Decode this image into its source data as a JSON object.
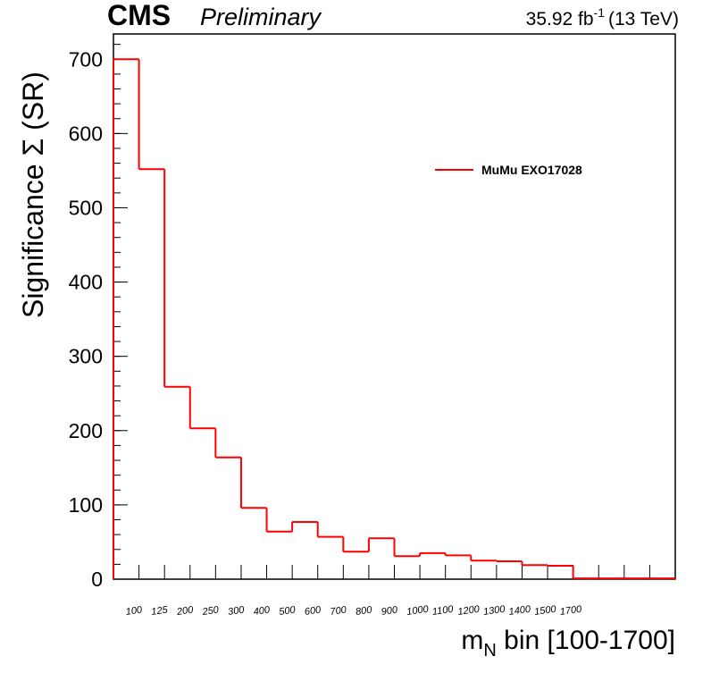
{
  "chart_data": {
    "type": "step",
    "experiment": "CMS",
    "status": "Preliminary",
    "lumi": "35.92 fb",
    "lumi_sup": "-1",
    "energy": "(13 TeV)",
    "y_label": "Significance Σ (SR)",
    "x_label_main": "m",
    "x_label_sub": "N",
    "x_label_rest": " bin [100-1700]",
    "categories": [
      "100",
      "125",
      "200",
      "250",
      "300",
      "400",
      "500",
      "600",
      "700",
      "800",
      "900",
      "1000",
      "1100",
      "1200",
      "1300",
      "1400",
      "1500",
      "1700",
      null,
      null,
      null,
      null
    ],
    "series": [
      {
        "name": "MuMu EXO17028",
        "color": "#ff0000",
        "values": [
          700,
          552,
          259,
          203,
          164,
          96,
          64,
          77,
          57,
          37,
          55,
          31,
          35,
          32,
          25,
          24,
          19,
          18,
          1,
          1,
          1,
          1
        ]
      }
    ],
    "ylim": [
      0,
      734
    ],
    "yticks": [
      0,
      100,
      200,
      300,
      400,
      500,
      600,
      700
    ],
    "legend": "upper right"
  }
}
